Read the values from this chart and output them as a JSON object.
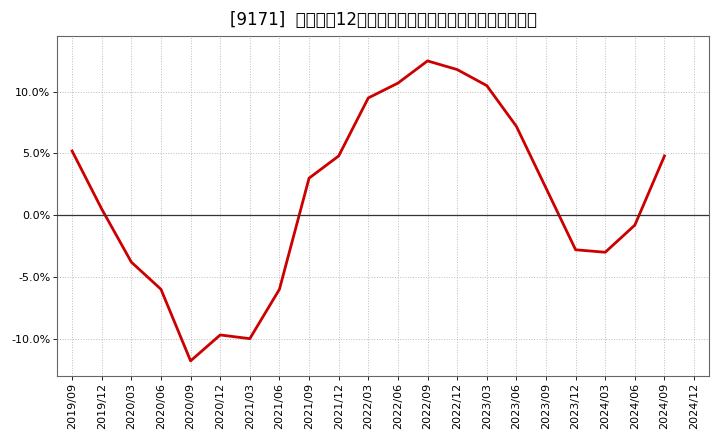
{
  "title": "[9171]  売上高の12か月移動合計の対前年同期増減率の推移",
  "line_color": "#cc0000",
  "bg_color": "#ffffff",
  "plot_bg_color": "#ffffff",
  "grid_color": "#bbbbbb",
  "dates": [
    "2019/09",
    "2019/12",
    "2020/03",
    "2020/06",
    "2020/09",
    "2020/12",
    "2021/03",
    "2021/06",
    "2021/09",
    "2021/12",
    "2022/03",
    "2022/06",
    "2022/09",
    "2022/12",
    "2023/03",
    "2023/06",
    "2023/09",
    "2023/12",
    "2024/03",
    "2024/06",
    "2024/09",
    "2024/12"
  ],
  "values": [
    0.052,
    0.005,
    -0.038,
    -0.06,
    -0.118,
    -0.097,
    -0.1,
    -0.06,
    0.03,
    0.048,
    0.095,
    0.107,
    0.125,
    0.118,
    0.105,
    0.072,
    0.022,
    -0.028,
    -0.03,
    -0.008,
    0.048,
    null
  ],
  "ylim": [
    -0.13,
    0.145
  ],
  "yticks": [
    -0.1,
    -0.05,
    0.0,
    0.05,
    0.1
  ],
  "title_fontsize": 12,
  "tick_fontsize": 8,
  "line_width": 2.0
}
